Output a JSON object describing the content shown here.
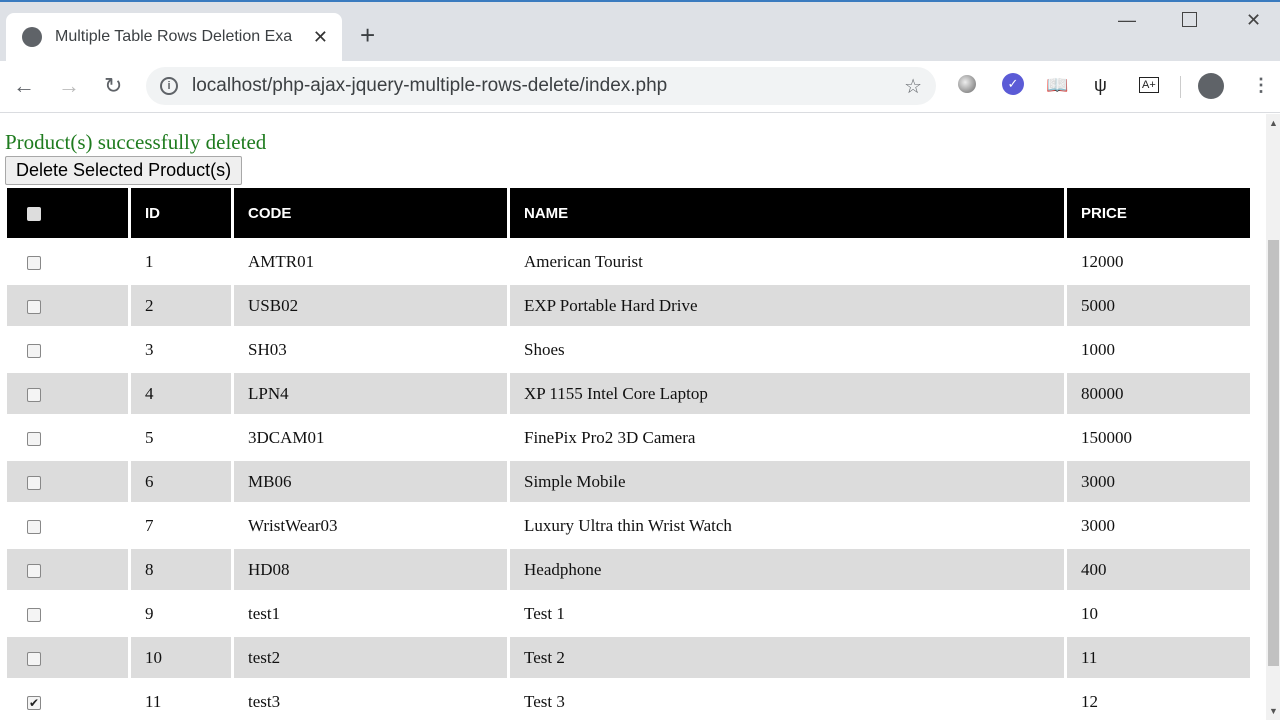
{
  "browser": {
    "tab_title": "Multiple Table Rows Deletion Exa",
    "url": "localhost/php-ajax-jquery-multiple-rows-delete/index.php"
  },
  "page": {
    "message": "Product(s) successfully deleted",
    "message_color": "#1e7b1e",
    "delete_button": "Delete Selected Product(s)"
  },
  "table": {
    "headers": [
      "ID",
      "CODE",
      "NAME",
      "PRICE"
    ],
    "rows": [
      {
        "id": "1",
        "code": "AMTR01",
        "name": "American Tourist",
        "price": "12000",
        "checked": false
      },
      {
        "id": "2",
        "code": "USB02",
        "name": "EXP Portable Hard Drive",
        "price": "5000",
        "checked": false
      },
      {
        "id": "3",
        "code": "SH03",
        "name": "Shoes",
        "price": "1000",
        "checked": false
      },
      {
        "id": "4",
        "code": "LPN4",
        "name": "XP 1155 Intel Core Laptop",
        "price": "80000",
        "checked": false
      },
      {
        "id": "5",
        "code": "3DCAM01",
        "name": "FinePix Pro2 3D Camera",
        "price": "150000",
        "checked": false
      },
      {
        "id": "6",
        "code": "MB06",
        "name": "Simple Mobile",
        "price": "3000",
        "checked": false
      },
      {
        "id": "7",
        "code": "WristWear03",
        "name": "Luxury Ultra thin Wrist Watch",
        "price": "3000",
        "checked": false
      },
      {
        "id": "8",
        "code": "HD08",
        "name": "Headphone",
        "price": "400",
        "checked": false
      },
      {
        "id": "9",
        "code": "test1",
        "name": "Test 1",
        "price": "10",
        "checked": false
      },
      {
        "id": "10",
        "code": "test2",
        "name": "Test 2",
        "price": "11",
        "checked": false
      },
      {
        "id": "11",
        "code": "test3",
        "name": "Test 3",
        "price": "12",
        "checked": true
      }
    ]
  }
}
